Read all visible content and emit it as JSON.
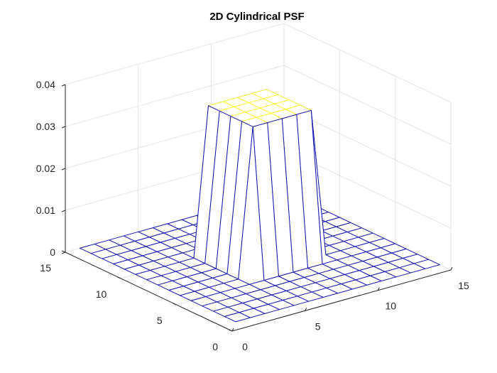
{
  "chart_data": {
    "type": "surface",
    "title": "2D Cylindrical PSF",
    "xlabel": "",
    "ylabel": "",
    "zlabel": "",
    "x_range": [
      0,
      15
    ],
    "y_range": [
      0,
      15
    ],
    "z_range": [
      0,
      0.04
    ],
    "x_ticks": [
      "0",
      "5",
      "10",
      "15"
    ],
    "y_ticks": [
      "0",
      "5",
      "10",
      "15"
    ],
    "z_ticks": [
      "0",
      "0.01",
      "0.02",
      "0.03",
      "0.04"
    ],
    "grid": true,
    "grid_size": 15,
    "plateau": {
      "x_from": 6,
      "x_to": 10,
      "y_from": 6,
      "y_to": 10,
      "value": 0.0354,
      "outside_value": 0
    },
    "colors": {
      "low": "#1a1ab4",
      "high": "#ffff33",
      "axes": "#262626",
      "gridlines": "#e6e6e6"
    }
  }
}
